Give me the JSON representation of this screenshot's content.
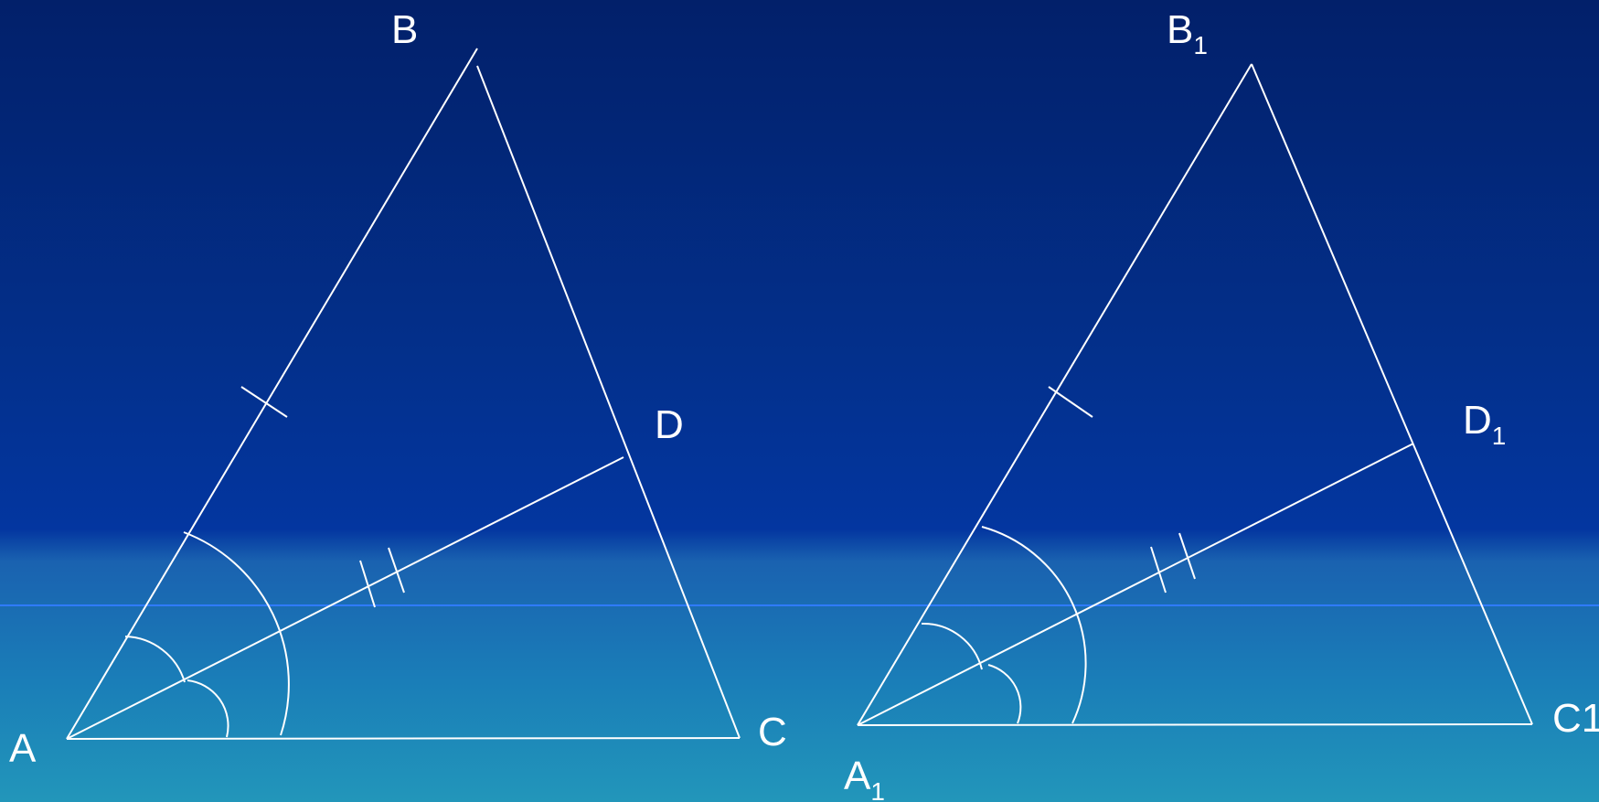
{
  "triangle_1": {
    "labels": {
      "A": "A",
      "B": "B",
      "C": "C",
      "D": "D"
    }
  },
  "triangle_2": {
    "labels": {
      "A": "A",
      "A_sub": "1",
      "B": "B",
      "B_sub": "1",
      "C": "C1",
      "D": "D",
      "D_sub": "1"
    }
  },
  "colors": {
    "line": "#ffffff",
    "horizon": "#2f7bff"
  }
}
